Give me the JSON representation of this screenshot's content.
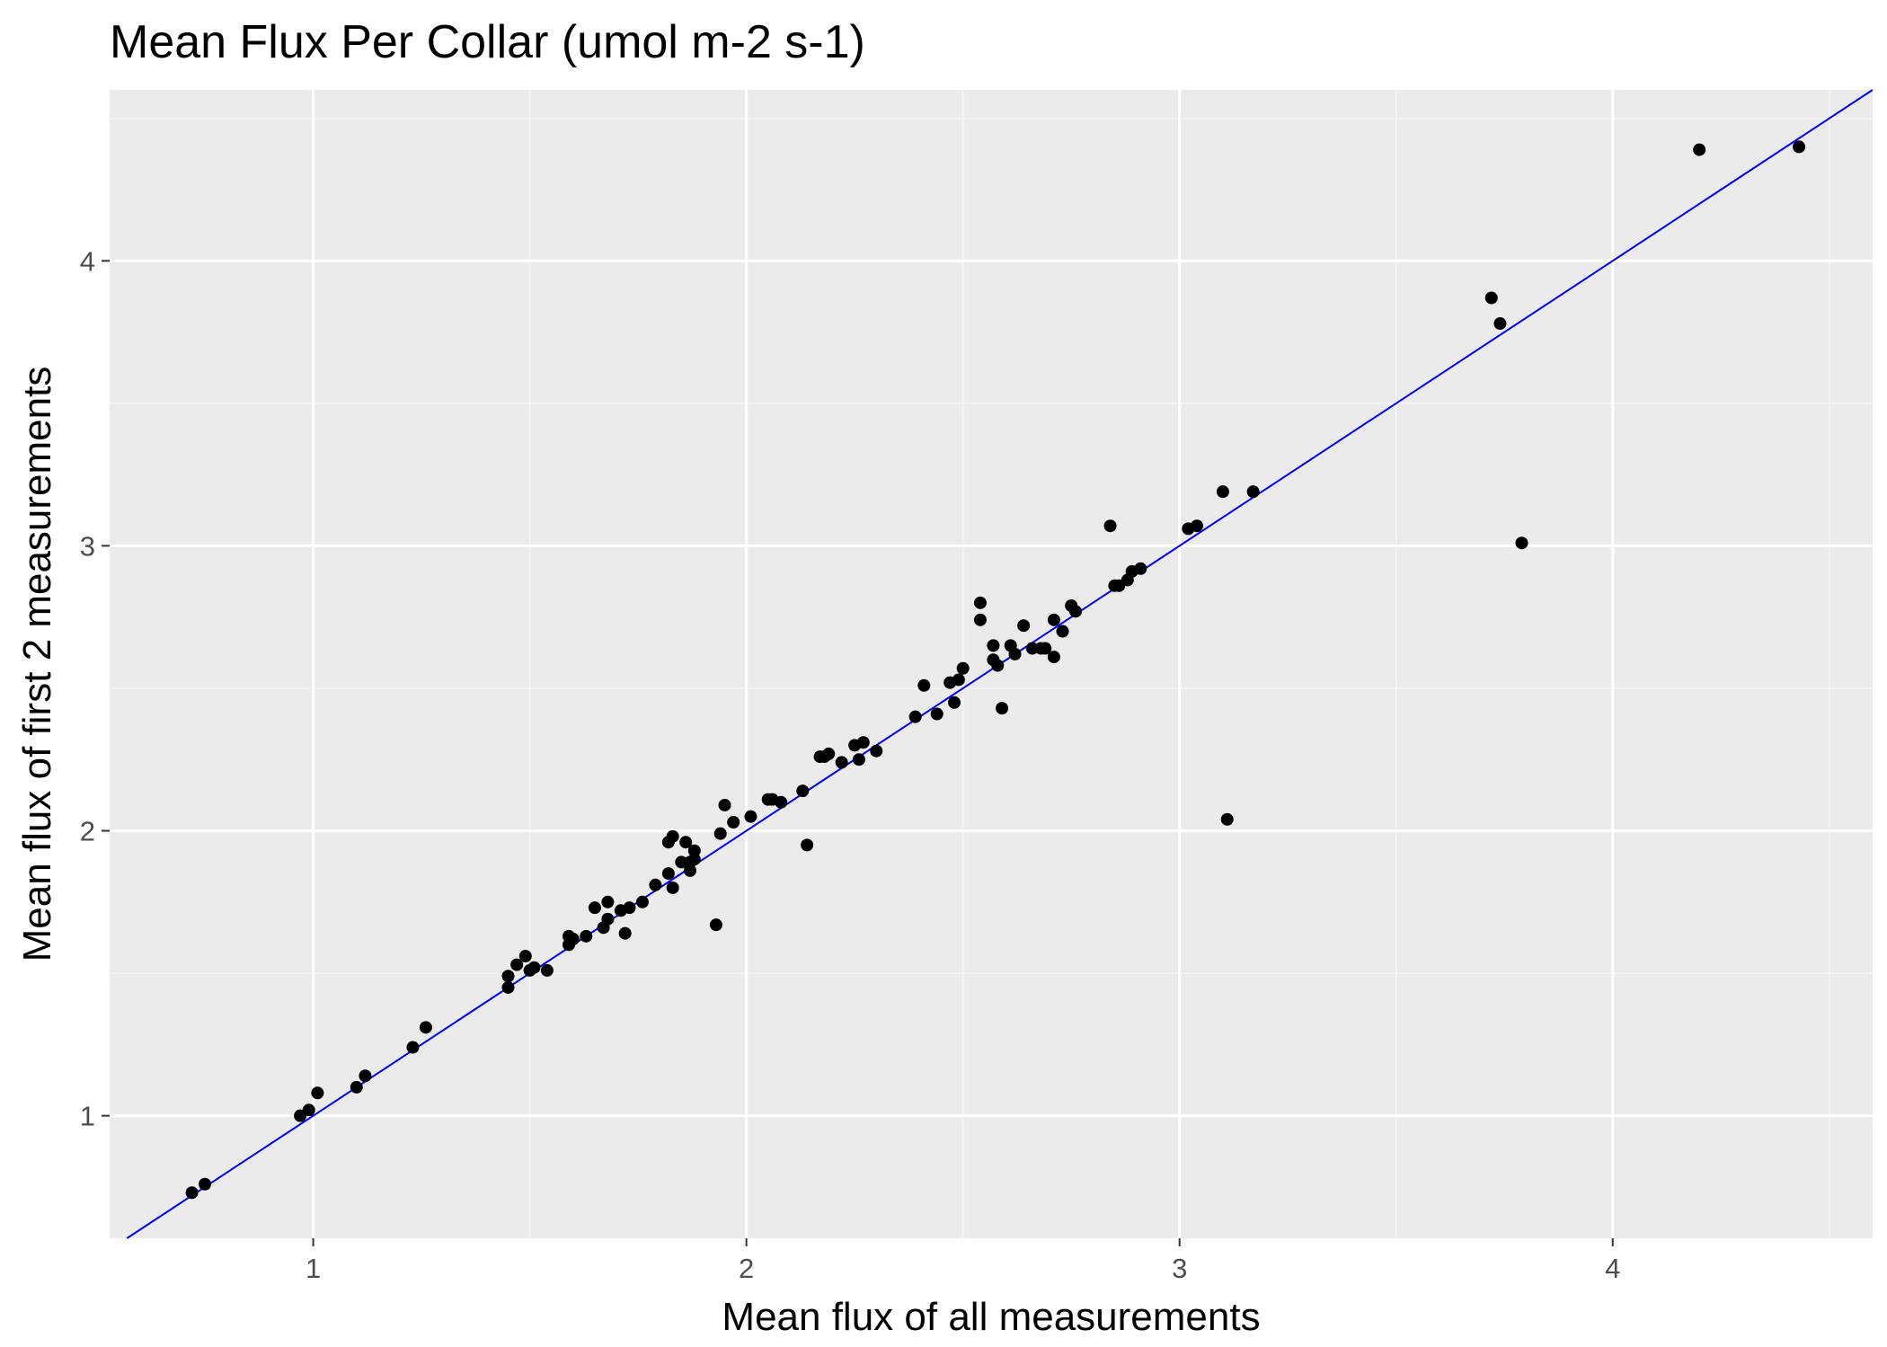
{
  "colors": {
    "panel_background": "#ebebeb",
    "grid_major": "#ffffff",
    "grid_minor": "#f5f5f5",
    "points": "#000000",
    "line": "#0000ff",
    "tick_text": "#4d4d4d"
  },
  "chart_data": {
    "type": "scatter",
    "title": "Mean Flux Per Collar (umol m-2 s-1)",
    "xlabel": "Mean flux of all measurements",
    "ylabel": "Mean flux of first 2 measurements",
    "xlim": [
      0.53,
      4.6
    ],
    "ylim": [
      0.57,
      4.6
    ],
    "x_ticks": [
      1,
      2,
      3,
      4
    ],
    "y_ticks": [
      1,
      2,
      3,
      4
    ],
    "x_tick_labels": [
      "1",
      "2",
      "3",
      "4"
    ],
    "y_tick_labels": [
      "1",
      "2",
      "3",
      "4"
    ],
    "grid": true,
    "legend": "none",
    "reference_line": {
      "slope": 1,
      "intercept": 0,
      "color": "#0000ff"
    },
    "points": [
      {
        "x": 0.72,
        "y": 0.73
      },
      {
        "x": 0.75,
        "y": 0.76
      },
      {
        "x": 0.97,
        "y": 1.0
      },
      {
        "x": 0.99,
        "y": 1.02
      },
      {
        "x": 1.01,
        "y": 1.08
      },
      {
        "x": 1.1,
        "y": 1.1
      },
      {
        "x": 1.12,
        "y": 1.14
      },
      {
        "x": 1.23,
        "y": 1.24
      },
      {
        "x": 1.26,
        "y": 1.31
      },
      {
        "x": 1.45,
        "y": 1.45
      },
      {
        "x": 1.45,
        "y": 1.49
      },
      {
        "x": 1.47,
        "y": 1.53
      },
      {
        "x": 1.49,
        "y": 1.56
      },
      {
        "x": 1.5,
        "y": 1.51
      },
      {
        "x": 1.51,
        "y": 1.52
      },
      {
        "x": 1.54,
        "y": 1.51
      },
      {
        "x": 1.59,
        "y": 1.63
      },
      {
        "x": 1.59,
        "y": 1.6
      },
      {
        "x": 1.6,
        "y": 1.62
      },
      {
        "x": 1.63,
        "y": 1.63
      },
      {
        "x": 1.65,
        "y": 1.73
      },
      {
        "x": 1.67,
        "y": 1.66
      },
      {
        "x": 1.68,
        "y": 1.75
      },
      {
        "x": 1.68,
        "y": 1.69
      },
      {
        "x": 1.71,
        "y": 1.72
      },
      {
        "x": 1.72,
        "y": 1.64
      },
      {
        "x": 1.73,
        "y": 1.73
      },
      {
        "x": 1.76,
        "y": 1.75
      },
      {
        "x": 1.79,
        "y": 1.81
      },
      {
        "x": 1.82,
        "y": 1.85
      },
      {
        "x": 1.82,
        "y": 1.96
      },
      {
        "x": 1.83,
        "y": 1.8
      },
      {
        "x": 1.83,
        "y": 1.98
      },
      {
        "x": 1.85,
        "y": 1.89
      },
      {
        "x": 1.86,
        "y": 1.96
      },
      {
        "x": 1.87,
        "y": 1.89
      },
      {
        "x": 1.87,
        "y": 1.86
      },
      {
        "x": 1.88,
        "y": 1.93
      },
      {
        "x": 1.88,
        "y": 1.9
      },
      {
        "x": 1.93,
        "y": 1.67
      },
      {
        "x": 1.94,
        "y": 1.99
      },
      {
        "x": 1.95,
        "y": 2.09
      },
      {
        "x": 1.97,
        "y": 2.03
      },
      {
        "x": 2.01,
        "y": 2.05
      },
      {
        "x": 2.05,
        "y": 2.11
      },
      {
        "x": 2.06,
        "y": 2.11
      },
      {
        "x": 2.08,
        "y": 2.1
      },
      {
        "x": 2.13,
        "y": 2.14
      },
      {
        "x": 2.14,
        "y": 1.95
      },
      {
        "x": 2.17,
        "y": 2.26
      },
      {
        "x": 2.18,
        "y": 2.26
      },
      {
        "x": 2.19,
        "y": 2.27
      },
      {
        "x": 2.22,
        "y": 2.24
      },
      {
        "x": 2.25,
        "y": 2.3
      },
      {
        "x": 2.26,
        "y": 2.25
      },
      {
        "x": 2.27,
        "y": 2.31
      },
      {
        "x": 2.3,
        "y": 2.28
      },
      {
        "x": 2.39,
        "y": 2.4
      },
      {
        "x": 2.41,
        "y": 2.51
      },
      {
        "x": 2.44,
        "y": 2.41
      },
      {
        "x": 2.47,
        "y": 2.52
      },
      {
        "x": 2.48,
        "y": 2.45
      },
      {
        "x": 2.49,
        "y": 2.53
      },
      {
        "x": 2.5,
        "y": 2.57
      },
      {
        "x": 2.54,
        "y": 2.8
      },
      {
        "x": 2.54,
        "y": 2.74
      },
      {
        "x": 2.57,
        "y": 2.65
      },
      {
        "x": 2.57,
        "y": 2.6
      },
      {
        "x": 2.58,
        "y": 2.58
      },
      {
        "x": 2.59,
        "y": 2.43
      },
      {
        "x": 2.61,
        "y": 2.65
      },
      {
        "x": 2.62,
        "y": 2.62
      },
      {
        "x": 2.64,
        "y": 2.72
      },
      {
        "x": 2.66,
        "y": 2.64
      },
      {
        "x": 2.68,
        "y": 2.64
      },
      {
        "x": 2.69,
        "y": 2.64
      },
      {
        "x": 2.71,
        "y": 2.74
      },
      {
        "x": 2.71,
        "y": 2.61
      },
      {
        "x": 2.73,
        "y": 2.7
      },
      {
        "x": 2.75,
        "y": 2.79
      },
      {
        "x": 2.76,
        "y": 2.77
      },
      {
        "x": 2.84,
        "y": 3.07
      },
      {
        "x": 2.85,
        "y": 2.86
      },
      {
        "x": 2.86,
        "y": 2.86
      },
      {
        "x": 2.88,
        "y": 2.88
      },
      {
        "x": 2.89,
        "y": 2.91
      },
      {
        "x": 2.91,
        "y": 2.92
      },
      {
        "x": 3.02,
        "y": 3.06
      },
      {
        "x": 3.04,
        "y": 3.07
      },
      {
        "x": 3.1,
        "y": 3.19
      },
      {
        "x": 3.11,
        "y": 2.04
      },
      {
        "x": 3.17,
        "y": 3.19
      },
      {
        "x": 3.72,
        "y": 3.87
      },
      {
        "x": 3.74,
        "y": 3.78
      },
      {
        "x": 3.79,
        "y": 3.01
      },
      {
        "x": 4.2,
        "y": 4.39
      },
      {
        "x": 4.43,
        "y": 4.4
      }
    ]
  }
}
